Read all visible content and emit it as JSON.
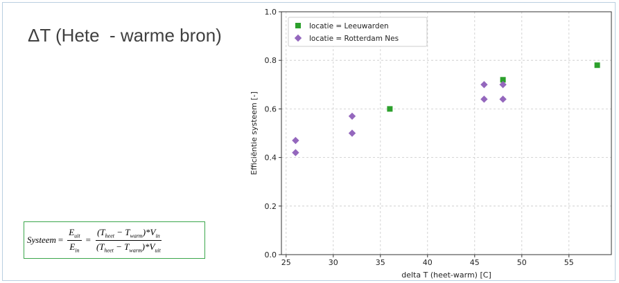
{
  "slide": {
    "title": "ΔT (Hete  - warme bron)"
  },
  "formula": {
    "lhs": "Systeem",
    "eq1": "=",
    "eq2": "=",
    "frac1_num": "E",
    "frac1_num_sub": "uit",
    "frac1_den": "E",
    "frac1_den_sub": "in",
    "frac2_num_a": "(T",
    "frac2_num_sub1": "heet",
    "frac2_num_b": " − T",
    "frac2_num_sub2": "warm",
    "frac2_num_c": ")*V",
    "frac2_num_sub3": "in",
    "frac2_den_a": "(T",
    "frac2_den_sub1": "heet",
    "frac2_den_b": " − T",
    "frac2_den_sub2": "warm",
    "frac2_den_c": ")*V",
    "frac2_den_sub3": "uit"
  },
  "colors": {
    "leeuwarden": "#2ca02c",
    "rotterdam": "#9467bd",
    "grid": "#c8c8c8"
  },
  "chart_data": {
    "type": "scatter",
    "title": "",
    "xlabel": "delta T (heet-warm) [C]",
    "ylabel": "Efficiëntie systeem [-]",
    "xlim": [
      24.5,
      59.5
    ],
    "ylim": [
      0.0,
      1.0
    ],
    "xticks": [
      25,
      30,
      35,
      40,
      45,
      50,
      55
    ],
    "yticks": [
      0.0,
      0.2,
      0.4,
      0.6,
      0.8,
      1.0
    ],
    "xtick_labels": [
      "25",
      "30",
      "35",
      "40",
      "45",
      "50",
      "55"
    ],
    "ytick_labels": [
      "0.0",
      "0.2",
      "0.4",
      "0.6",
      "0.8",
      "1.0"
    ],
    "grid": true,
    "legend_position": "top-left",
    "series": [
      {
        "name": "locatie = Leeuwarden",
        "marker": "square",
        "color": "#2ca02c",
        "points": [
          [
            36,
            0.6
          ],
          [
            48,
            0.72
          ],
          [
            58,
            0.78
          ]
        ]
      },
      {
        "name": "locatie = Rotterdam Nes",
        "marker": "diamond",
        "color": "#9467bd",
        "points": [
          [
            26,
            0.47
          ],
          [
            26,
            0.42
          ],
          [
            32,
            0.57
          ],
          [
            32,
            0.5
          ],
          [
            46,
            0.7
          ],
          [
            46,
            0.64
          ],
          [
            48,
            0.7
          ],
          [
            48,
            0.64
          ]
        ]
      }
    ]
  }
}
